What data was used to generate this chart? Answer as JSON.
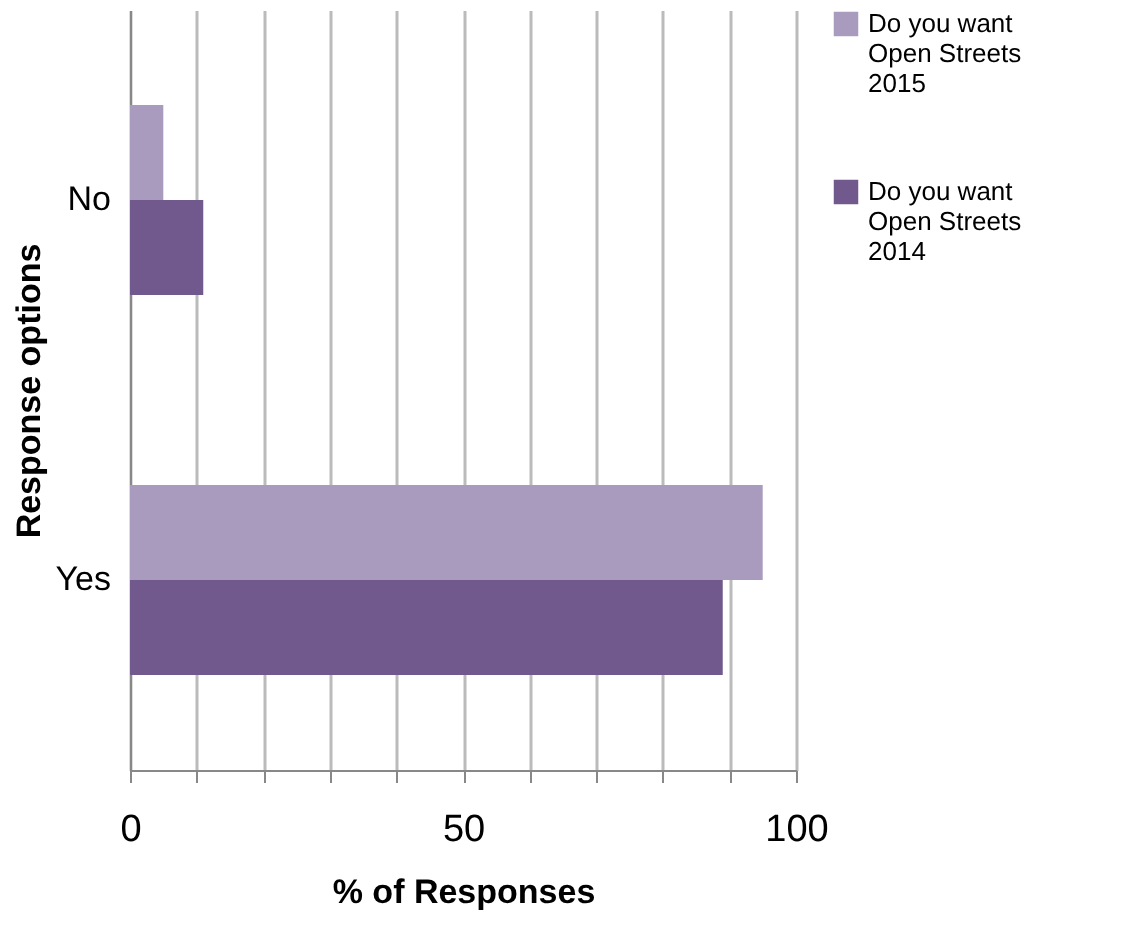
{
  "chart_data": {
    "type": "bar",
    "orientation": "horizontal",
    "categories": [
      "No",
      "Yes"
    ],
    "series": [
      {
        "name": "Do you want Open Streets 2015",
        "color": "#a99bbd",
        "values": [
          5,
          95
        ]
      },
      {
        "name": "Do you want Open Streets 2014",
        "color": "#71598e",
        "values": [
          11,
          89
        ]
      }
    ],
    "xlabel": "% of Responses",
    "ylabel": "Response options",
    "xlim": [
      0,
      100
    ],
    "xticks": [
      0,
      {
        "value": 10,
        "label": null
      },
      {
        "value": 20,
        "label": null
      },
      {
        "value": 30,
        "label": null
      },
      {
        "value": 40,
        "label": null
      },
      50,
      {
        "value": 60,
        "label": null
      },
      {
        "value": 70,
        "label": null
      },
      {
        "value": 80,
        "label": null
      },
      {
        "value": 90,
        "label": null
      },
      100
    ],
    "grid": "x",
    "legend": "right"
  }
}
